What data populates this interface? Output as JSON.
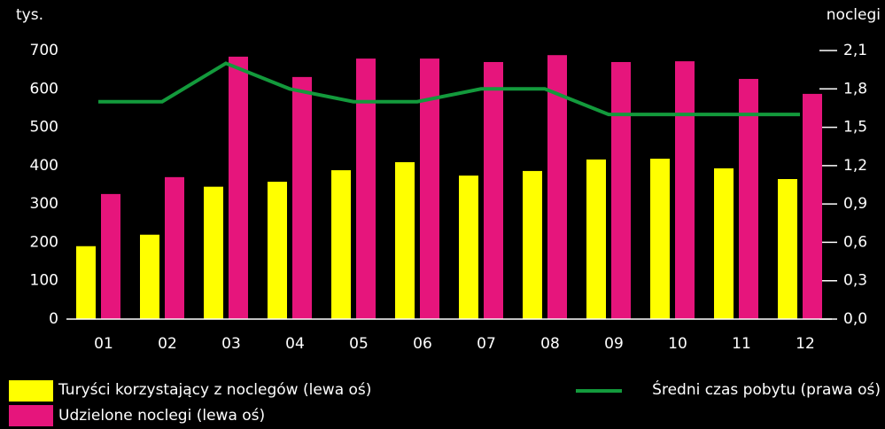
{
  "chart_data": {
    "type": "bar",
    "y_unit_label": "tys.",
    "y2_unit_label": "noclegi",
    "categories": [
      "01",
      "02",
      "03",
      "04",
      "05",
      "06",
      "07",
      "08",
      "09",
      "10",
      "11",
      "12"
    ],
    "series": [
      {
        "name": "Turyści korzystający z noclegów (lewa oś)",
        "type": "bar",
        "color": "#ffff00",
        "values": [
          190,
          220,
          345,
          358,
          388,
          409,
          374,
          386,
          416,
          418,
          393,
          365
        ]
      },
      {
        "name": "Udzielone noclegi (lewa oś)",
        "type": "bar",
        "color": "#e6157c",
        "values": [
          326,
          370,
          684,
          631,
          679,
          679,
          670,
          688,
          670,
          672,
          626,
          587
        ]
      },
      {
        "name": "Średni czas pobytu (prawa oś)",
        "type": "line",
        "axis": "y2",
        "color": "#139a3c",
        "values": [
          1.7,
          1.7,
          2.0,
          1.8,
          1.7,
          1.7,
          1.8,
          1.8,
          1.6,
          1.6,
          1.6,
          1.6
        ]
      }
    ],
    "ylim": [
      0,
      700
    ],
    "yticks": [
      0,
      100,
      200,
      300,
      400,
      500,
      600,
      700
    ],
    "y2lim": [
      0,
      2.1
    ],
    "y2ticks": [
      {
        "value": 0,
        "label": "0,0"
      },
      {
        "value": 0.3,
        "label": "0,3"
      },
      {
        "value": 0.6,
        "label": "0,6"
      },
      {
        "value": 0.9,
        "label": "0,9"
      },
      {
        "value": 1.2,
        "label": "1,2"
      },
      {
        "value": 1.5,
        "label": "1,5"
      },
      {
        "value": 1.8,
        "label": "1,8"
      },
      {
        "value": 2.1,
        "label": "2,1"
      }
    ]
  }
}
